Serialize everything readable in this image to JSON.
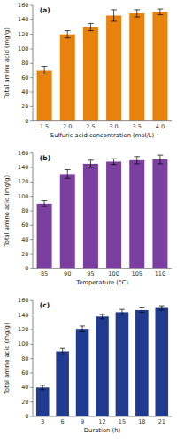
{
  "chart_data": [
    {
      "type": "bar",
      "title": "(a)",
      "categories": [
        "1.5",
        "2.0",
        "2.5",
        "3.0",
        "3.5",
        "4.0"
      ],
      "values": [
        70,
        120,
        130,
        146,
        149,
        151
      ],
      "errors": [
        5,
        5,
        5,
        8,
        5,
        4
      ],
      "color": "#E8820C",
      "x_label": "Sulfuric acid concentration (mol/L)",
      "y_label": "Total amino acid (mg/g)",
      "ylim": [
        0,
        160
      ],
      "yticks": [
        0,
        20,
        40,
        60,
        80,
        100,
        120,
        140,
        160
      ]
    },
    {
      "type": "bar",
      "title": "(b)",
      "categories": [
        "85",
        "90",
        "95",
        "100",
        "105",
        "110"
      ],
      "values": [
        90,
        131,
        145,
        148,
        150,
        151
      ],
      "errors": [
        4,
        6,
        5,
        4,
        5,
        6
      ],
      "color": "#7B3FA0",
      "x_label": "Temperature (°C)",
      "y_label": "Total amino acid (mg/g)",
      "ylim": [
        0,
        160
      ],
      "yticks": [
        0,
        20,
        40,
        60,
        80,
        100,
        120,
        140,
        160
      ]
    },
    {
      "type": "bar",
      "title": "(c)",
      "categories": [
        "3",
        "6",
        "9",
        "12",
        "15",
        "18",
        "21"
      ],
      "values": [
        40,
        90,
        121,
        138,
        144,
        147,
        150
      ],
      "errors": [
        3,
        4,
        4,
        3,
        4,
        3,
        3
      ],
      "color": "#1F3A8F",
      "x_label": "Duration (h)",
      "y_label": "Total amino acid (mg/g)",
      "ylim": [
        0,
        160
      ],
      "yticks": [
        0,
        20,
        40,
        60,
        80,
        100,
        120,
        140,
        160
      ]
    }
  ]
}
